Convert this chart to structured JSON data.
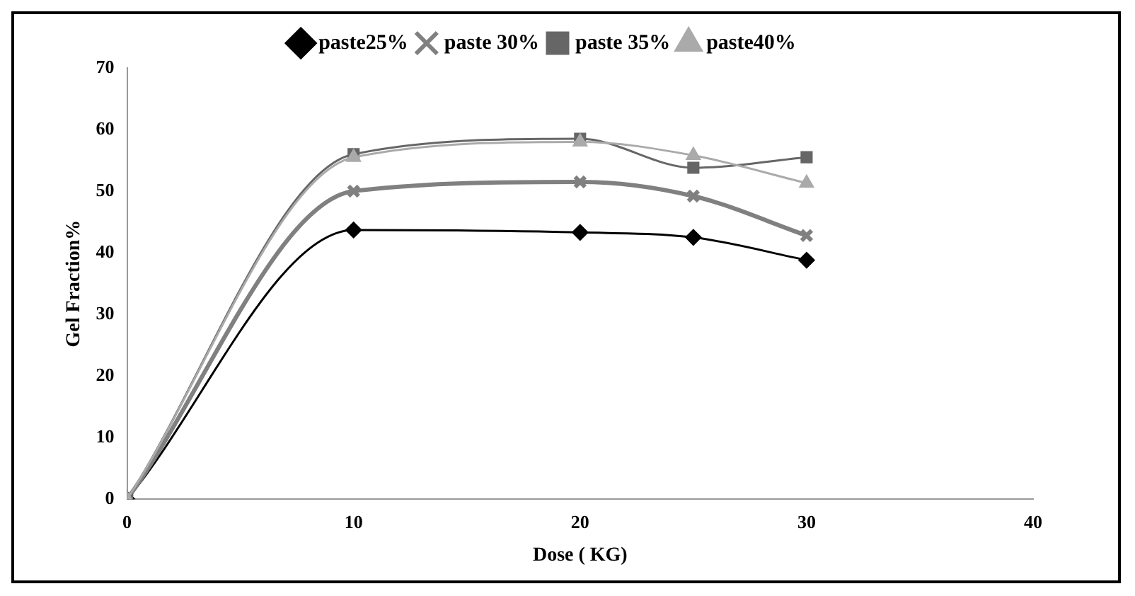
{
  "chart_data": {
    "type": "line",
    "xlabel": "Dose ( KG)",
    "ylabel": "Gel Fraction%",
    "x": [
      0,
      10,
      20,
      25,
      30
    ],
    "series": [
      {
        "name": "paste25%",
        "color": "#000000",
        "marker": "diamond",
        "values": [
          0,
          43.7,
          43.3,
          42.5,
          38.8
        ]
      },
      {
        "name": "paste 30%",
        "color": "#808080",
        "marker": "cross",
        "values": [
          0,
          50,
          51.5,
          49.2,
          42.8
        ]
      },
      {
        "name": "paste 35%",
        "color": "#666666",
        "marker": "square",
        "values": [
          0,
          56,
          58.5,
          53.8,
          55.5
        ]
      },
      {
        "name": "paste40%",
        "color": "#aaaaaa",
        "marker": "triangle",
        "values": [
          0,
          55.5,
          58,
          55.8,
          51.3
        ]
      }
    ],
    "xlim": [
      0,
      40
    ],
    "xticks": [
      0,
      10,
      20,
      30,
      40
    ],
    "ylim": [
      0,
      70
    ],
    "yticks": [
      0,
      10,
      20,
      30,
      40,
      50,
      60,
      70
    ],
    "grid": false,
    "legend": "top"
  }
}
